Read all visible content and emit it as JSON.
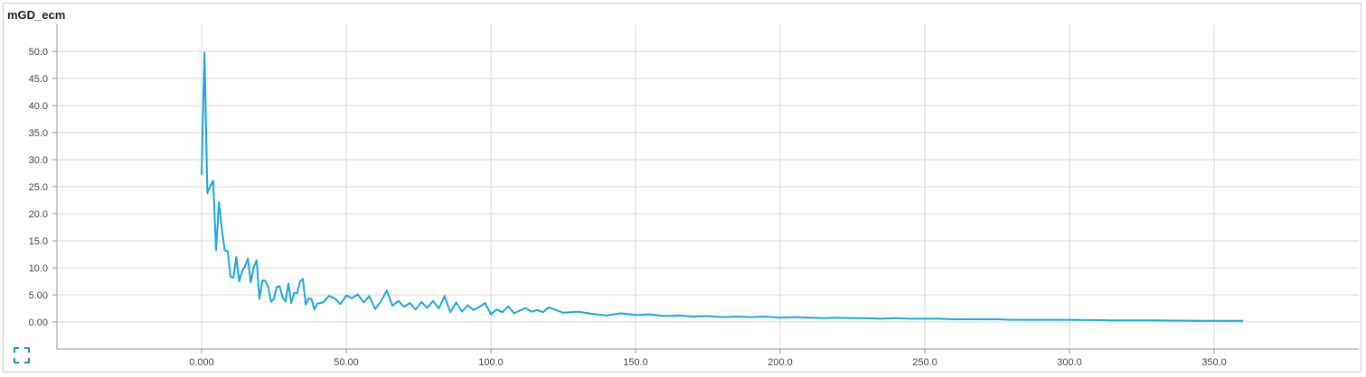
{
  "panel": {
    "title": "mGD_ecm"
  },
  "colors": {
    "line": "#1ba6e3",
    "grid": "#d9d9d9",
    "axis": "#9a9a9a",
    "expand_icon": "#1a8fd6"
  },
  "icons": {
    "expand": "expand-icon"
  },
  "chart_data": {
    "type": "line",
    "title": "mGD_ecm",
    "xlabel": "",
    "ylabel": "",
    "xlim": [
      -50,
      400
    ],
    "ylim": [
      -5,
      55
    ],
    "x_ticks": [
      0,
      50,
      100,
      150,
      200,
      250,
      300,
      350
    ],
    "x_tick_labels": [
      "0.000",
      "50.00",
      "100.0",
      "150.0",
      "200.0",
      "250.0",
      "300.0",
      "350.0"
    ],
    "y_ticks": [
      0,
      5,
      10,
      15,
      20,
      25,
      30,
      35,
      40,
      45,
      50
    ],
    "y_tick_labels": [
      "0.00",
      "5.00",
      "10.0",
      "15.0",
      "20.0",
      "25.0",
      "30.0",
      "35.0",
      "40.0",
      "45.0",
      "50.0"
    ],
    "grid": true,
    "series": [
      {
        "x": [
          0,
          1,
          2,
          3,
          4,
          5,
          6,
          7,
          8,
          9,
          10,
          11,
          12,
          13,
          14,
          15,
          16,
          17,
          18,
          19,
          20,
          21,
          22,
          23,
          24,
          25,
          26,
          27,
          28,
          29,
          30,
          31,
          32,
          33,
          34,
          35,
          36,
          37,
          38,
          39,
          40,
          42,
          44,
          46,
          48,
          50,
          52,
          54,
          56,
          58,
          60,
          62,
          64,
          66,
          68,
          70,
          72,
          74,
          76,
          78,
          80,
          82,
          84,
          86,
          88,
          90,
          92,
          94,
          96,
          98,
          100,
          102,
          104,
          106,
          108,
          110,
          112,
          114,
          116,
          118,
          120,
          125,
          130,
          135,
          140,
          145,
          150,
          155,
          160,
          165,
          170,
          175,
          180,
          185,
          190,
          195,
          200,
          205,
          210,
          215,
          220,
          225,
          230,
          235,
          240,
          245,
          250,
          255,
          260,
          265,
          270,
          275,
          280,
          285,
          290,
          295,
          300,
          305,
          310,
          315,
          320,
          325,
          330,
          335,
          340,
          345,
          350,
          355,
          360
        ],
        "values": [
          27.2,
          49.8,
          23.8,
          25.1,
          26.1,
          13.3,
          22.1,
          17.2,
          13.2,
          13.1,
          8.3,
          8.2,
          12.0,
          7.5,
          9.4,
          10.3,
          11.7,
          7.3,
          10.1,
          11.4,
          4.3,
          7.7,
          7.6,
          6.5,
          3.7,
          4.3,
          6.5,
          6.6,
          4.5,
          3.8,
          7.1,
          3.5,
          5.4,
          5.3,
          7.4,
          8.0,
          3.2,
          4.4,
          4.2,
          2.3,
          3.4,
          3.6,
          4.8,
          4.4,
          3.3,
          4.9,
          4.4,
          5.1,
          3.6,
          4.8,
          2.4,
          3.8,
          5.8,
          3.0,
          3.9,
          2.8,
          3.5,
          2.3,
          3.7,
          2.6,
          3.9,
          2.5,
          4.8,
          1.8,
          3.6,
          1.9,
          3.1,
          2.2,
          2.8,
          3.5,
          1.4,
          2.3,
          1.8,
          2.9,
          1.6,
          2.1,
          2.6,
          1.9,
          2.2,
          1.8,
          2.7,
          1.7,
          1.9,
          1.5,
          1.2,
          1.6,
          1.3,
          1.4,
          1.1,
          1.2,
          1.0,
          1.1,
          0.9,
          1.0,
          0.9,
          1.0,
          0.8,
          0.9,
          0.8,
          0.7,
          0.8,
          0.7,
          0.7,
          0.6,
          0.7,
          0.6,
          0.6,
          0.6,
          0.5,
          0.5,
          0.5,
          0.5,
          0.4,
          0.4,
          0.4,
          0.4,
          0.4,
          0.35,
          0.35,
          0.3,
          0.3,
          0.3,
          0.3,
          0.25,
          0.25,
          0.2,
          0.2,
          0.2,
          0.2
        ]
      }
    ]
  }
}
